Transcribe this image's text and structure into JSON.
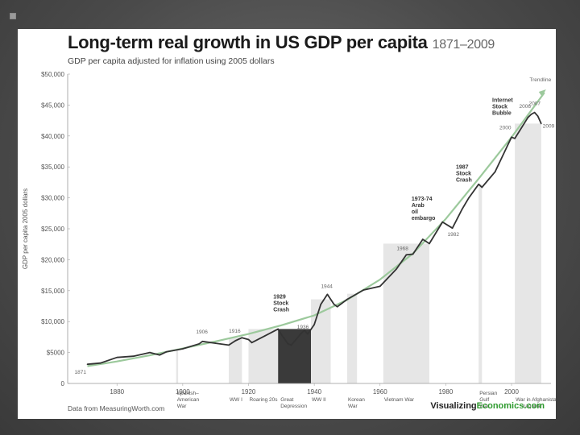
{
  "title": "Long-term real growth in US GDP per capita",
  "title_years": "1871–2009",
  "subtitle": "GDP per capita adjusted for inflation using 2005 dollars",
  "footer_source": "Data from MeasuringWorth.com",
  "footer_brand_a": "Visualizing",
  "footer_brand_b": "Economics.com",
  "colors": {
    "line": "#333333",
    "trend": "#9cc99c",
    "shade": "#e6e6e6",
    "depression": "#3a3a3a"
  },
  "chart_data": {
    "type": "line",
    "title": "Long-term real growth in US GDP per capita",
    "xlabel": "",
    "ylabel": "GDP per capita 2005 dollars",
    "xlim": [
      1865,
      2012
    ],
    "ylim": [
      0,
      50000
    ],
    "x_ticks": [
      1880,
      1900,
      1920,
      1940,
      1960,
      1980,
      2000
    ],
    "y_ticks": [
      0,
      5000,
      10000,
      15000,
      20000,
      25000,
      30000,
      35000,
      40000,
      45000,
      50000
    ],
    "y_tick_labels": [
      "0",
      "$5000",
      "$10,000",
      "$15,000",
      "$20,000",
      "$25,000",
      "$30,000",
      "$35,000",
      "$40,000",
      "$45,000",
      "$50,000"
    ],
    "series": [
      {
        "name": "GDP per capita",
        "x": [
          1871,
          1875,
          1880,
          1885,
          1890,
          1893,
          1895,
          1900,
          1905,
          1906,
          1910,
          1914,
          1916,
          1918,
          1920,
          1921,
          1925,
          1929,
          1930,
          1932,
          1933,
          1936,
          1937,
          1938,
          1940,
          1942,
          1944,
          1946,
          1947,
          1950,
          1955,
          1960,
          1965,
          1968,
          1970,
          1973,
          1975,
          1979,
          1982,
          1985,
          1987,
          1990,
          1991,
          1995,
          2000,
          2001,
          2005,
          2006,
          2007,
          2008,
          2009
        ],
        "values": [
          3100,
          3300,
          4200,
          4400,
          5000,
          4600,
          5100,
          5600,
          6400,
          6800,
          6500,
          6200,
          6900,
          7400,
          7100,
          6600,
          7700,
          8800,
          7900,
          6400,
          6200,
          8100,
          8600,
          8000,
          9500,
          12800,
          14400,
          12800,
          12400,
          13600,
          15100,
          15700,
          18500,
          20800,
          20900,
          23300,
          22600,
          26100,
          25100,
          28200,
          30000,
          32200,
          31700,
          34200,
          39800,
          39600,
          43000,
          43500,
          43800,
          43200,
          42000
        ]
      },
      {
        "name": "Trendline",
        "x": [
          1871,
          1880,
          1890,
          1900,
          1910,
          1920,
          1930,
          1940,
          1950,
          1960,
          1970,
          1980,
          1990,
          2000,
          2010
        ],
        "values": [
          2800,
          3550,
          4550,
          5650,
          6800,
          8000,
          9400,
          11000,
          13500,
          16800,
          21000,
          26600,
          33100,
          39800,
          47000
        ]
      }
    ],
    "shaded_periods": [
      {
        "label_lines": [
          "Spanish–",
          "American",
          "War"
        ],
        "start": 1898,
        "end": 1898.6
      },
      {
        "label_lines": [
          "WW I"
        ],
        "start": 1914,
        "end": 1918
      },
      {
        "label_lines": [
          "Roaring 20s"
        ],
        "start": 1920,
        "end": 1929
      },
      {
        "label_lines": [
          "Great",
          "Depression"
        ],
        "start": 1929,
        "end": 1939,
        "dark": true
      },
      {
        "label_lines": [
          "WW II"
        ],
        "start": 1939,
        "end": 1945
      },
      {
        "label_lines": [
          "Korean",
          "War"
        ],
        "start": 1950,
        "end": 1953
      },
      {
        "label_lines": [
          "Vietnam War"
        ],
        "start": 1961,
        "end": 1975
      },
      {
        "label_lines": [
          "Persian",
          "Gulf",
          "War"
        ],
        "start": 1990,
        "end": 1991
      },
      {
        "label_lines": [
          "War in Afghanistan"
        ],
        "start": 2001,
        "end": 2009
      },
      {
        "label_lines": [
          "Iraq War"
        ],
        "start": 2003,
        "end": 2009
      }
    ],
    "annotations": [
      {
        "text_lines": [
          "1871"
        ],
        "x": 1871,
        "y": 3100,
        "bold": false
      },
      {
        "text_lines": [
          "1906"
        ],
        "x": 1906,
        "y": 6800,
        "bold": false
      },
      {
        "text_lines": [
          "1916"
        ],
        "x": 1916,
        "y": 6900,
        "bold": false
      },
      {
        "text_lines": [
          "1929",
          "Stock",
          "Crash"
        ],
        "x": 1929,
        "y": 8800,
        "bold": true
      },
      {
        "text_lines": [
          "1936"
        ],
        "x": 1936,
        "y": 8100,
        "bold": false
      },
      {
        "text_lines": [
          "1944"
        ],
        "x": 1944,
        "y": 14400,
        "bold": false
      },
      {
        "text_lines": [
          "1968"
        ],
        "x": 1968,
        "y": 20800,
        "bold": false
      },
      {
        "text_lines": [
          "1973-74",
          "Arab",
          "oil",
          "embargo"
        ],
        "x": 1973,
        "y": 23300,
        "bold": true
      },
      {
        "text_lines": [
          "1982"
        ],
        "x": 1982,
        "y": 25100,
        "bold": false
      },
      {
        "text_lines": [
          "1987",
          "Stock",
          "Crash"
        ],
        "x": 1987,
        "y": 30000,
        "bold": true
      },
      {
        "text_lines": [
          "Internet",
          "Stock",
          "Bubble"
        ],
        "x": 2000,
        "y": 39800,
        "bold": true
      },
      {
        "text_lines": [
          "2000"
        ],
        "x": 2000,
        "y": 39800,
        "bold": false
      },
      {
        "text_lines": [
          "2006"
        ],
        "x": 2006,
        "y": 43500,
        "bold": false
      },
      {
        "text_lines": [
          "2007"
        ],
        "x": 2007,
        "y": 43800,
        "bold": false
      },
      {
        "text_lines": [
          "2009"
        ],
        "x": 2009,
        "y": 42000,
        "bold": false
      }
    ],
    "trend_label": "Trendline"
  }
}
